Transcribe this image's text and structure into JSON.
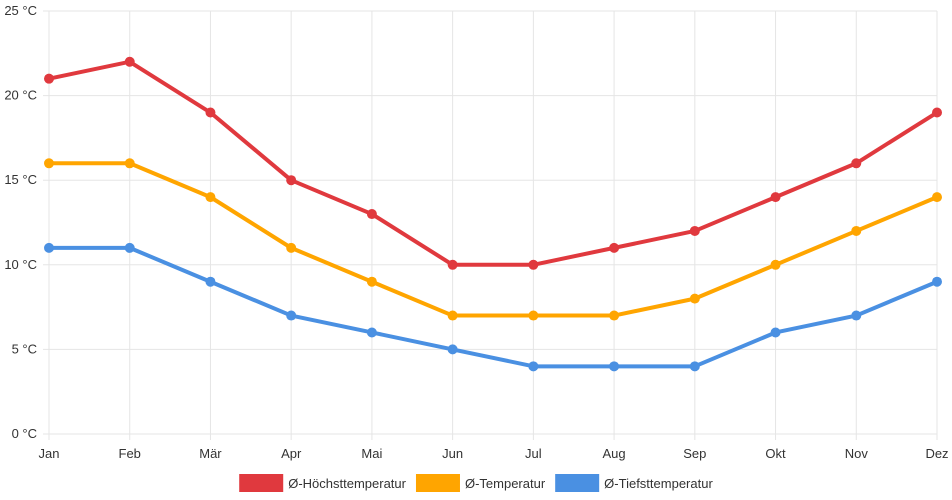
{
  "chart_data": {
    "type": "line",
    "categories": [
      "Jan",
      "Feb",
      "Mär",
      "Apr",
      "Mai",
      "Jun",
      "Jul",
      "Aug",
      "Sep",
      "Okt",
      "Nov",
      "Dez"
    ],
    "series": [
      {
        "name": "Ø-Höchsttemperatur",
        "color": "#e0393e",
        "values": [
          21,
          22,
          19,
          15,
          13,
          10,
          10,
          11,
          12,
          14,
          16,
          19
        ]
      },
      {
        "name": "Ø-Temperatur",
        "color": "#ffa500",
        "values": [
          16,
          16,
          14,
          11,
          9,
          7,
          7,
          7,
          8,
          10,
          12,
          14
        ]
      },
      {
        "name": "Ø-Tiefsttemperatur",
        "color": "#4a90e2",
        "values": [
          11,
          11,
          9,
          7,
          6,
          5,
          4,
          4,
          4,
          6,
          7,
          9
        ]
      }
    ],
    "y_ticks": [
      "0 °C",
      "5 °C",
      "10 °C",
      "15 °C",
      "20 °C",
      "25 °C"
    ],
    "ylim": [
      0,
      25
    ],
    "grid": true,
    "legend_position": "bottom"
  }
}
